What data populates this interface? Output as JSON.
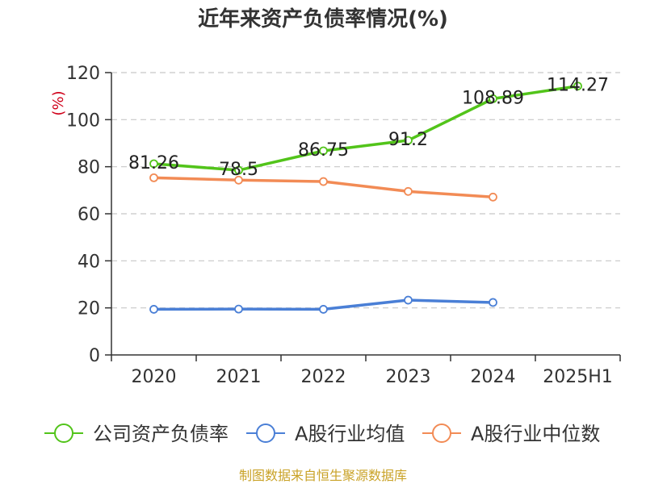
{
  "chart_data": {
    "type": "line",
    "title": "近年来资产负债率情况(%)",
    "ylabel": "(%)",
    "xlabel": "",
    "categories": [
      "2020",
      "2021",
      "2022",
      "2023",
      "2024",
      "2025H1"
    ],
    "ylim": [
      0,
      120
    ],
    "yticks": [
      0,
      20,
      40,
      60,
      80,
      100,
      120
    ],
    "grid": true,
    "legend_position": "bottom",
    "series": [
      {
        "name": "公司资产负债率",
        "color": "#52c41a",
        "values": [
          81.26,
          78.5,
          86.75,
          91.2,
          108.89,
          114.27
        ],
        "labels": [
          "81.26",
          "78.5",
          "86.75",
          "91.2",
          "108.89",
          "114.27"
        ]
      },
      {
        "name": "A股行业均值",
        "color": "#4a7fd6",
        "values": [
          19.4,
          19.5,
          19.4,
          23.3,
          22.3,
          null
        ]
      },
      {
        "name": "A股行业中位数",
        "color": "#f28b55",
        "values": [
          75.3,
          74.3,
          73.7,
          69.5,
          67.1,
          null
        ]
      }
    ],
    "source": "制图数据来自恒生聚源数据库"
  }
}
